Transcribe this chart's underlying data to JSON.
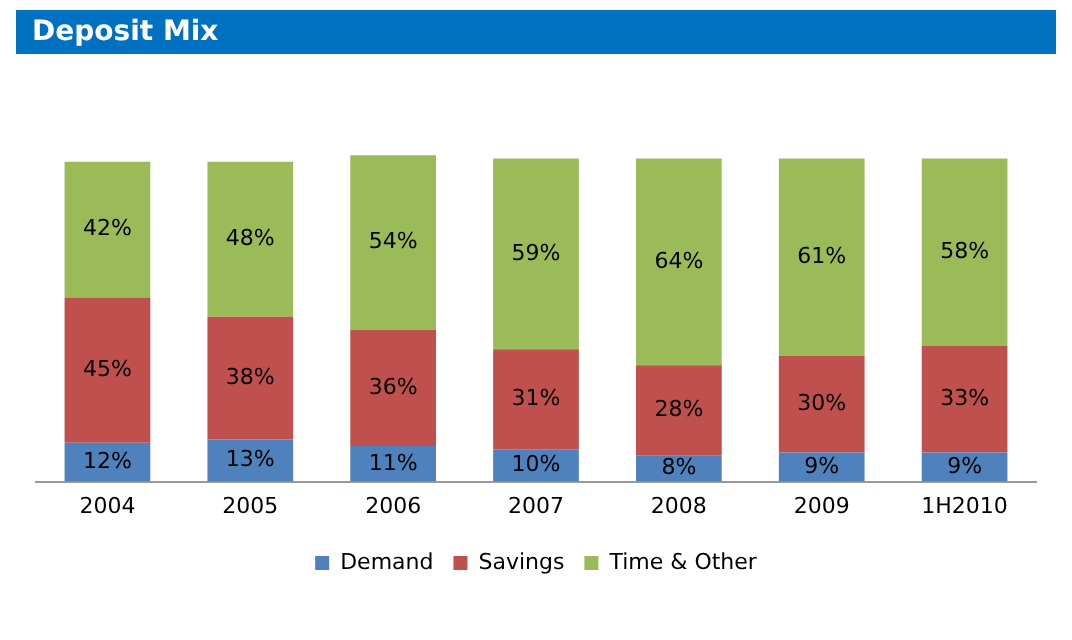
{
  "chart_data": {
    "type": "bar",
    "title": "Deposit Mix",
    "stacked": true,
    "categories": [
      "2004",
      "2005",
      "2006",
      "2007",
      "2008",
      "2009",
      "1H2010"
    ],
    "series": [
      {
        "name": "Demand",
        "color": "#4f81bd",
        "values": [
          12,
          13,
          11,
          10,
          8,
          9,
          9
        ],
        "value_labels": [
          "12%",
          "13%",
          "11%",
          "10%",
          "8%",
          "9%",
          "9%"
        ]
      },
      {
        "name": "Savings",
        "color": "#c0504d",
        "values": [
          45,
          38,
          36,
          31,
          28,
          30,
          33
        ],
        "value_labels": [
          "45%",
          "38%",
          "36%",
          "31%",
          "28%",
          "30%",
          "33%"
        ]
      },
      {
        "name": "Time & Other",
        "color": "#9bbb59",
        "values": [
          42,
          48,
          54,
          59,
          64,
          61,
          58
        ],
        "value_labels": [
          "42%",
          "48%",
          "54%",
          "59%",
          "64%",
          "61%",
          "58%"
        ]
      }
    ],
    "legend": "bottom",
    "grid": false,
    "tick_labels": "x"
  }
}
